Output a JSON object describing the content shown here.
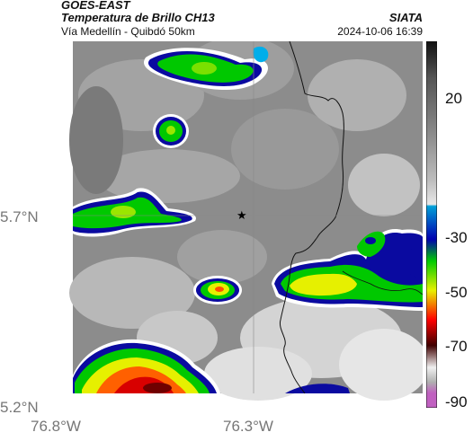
{
  "header": {
    "satellite": "GOES-EAST",
    "product": "Temperatura de Brillo CH13",
    "region": "Vía Medellín - Quibdó 50km",
    "agency": "SIATA",
    "timestamp": "2024-10-06 16:39"
  },
  "axes": {
    "x_ticks": [
      "76.8°W",
      "76.3°W"
    ],
    "y_ticks": [
      "5.7°N",
      "5.2°N"
    ]
  },
  "colorbar": {
    "ticks": [
      "20",
      "-30",
      "-50",
      "-70",
      "-90"
    ],
    "gradient_colors": [
      "#111111",
      "#555555",
      "#8a8a8a",
      "#bdbdbd",
      "#e8e8e8",
      "#00a0d8",
      "#0000b0",
      "#00cc00",
      "#e8f000",
      "#ff0000",
      "#400000",
      "#f0f0f0",
      "#c060c0"
    ]
  },
  "colors": {
    "cloud_warm": "#8a8a8a",
    "cloud_cold_blue": "#0a0aa0",
    "cloud_cold_green": "#00c800",
    "cloud_cold_yellow": "#e6f000",
    "cloud_coldest_red": "#d80000"
  }
}
